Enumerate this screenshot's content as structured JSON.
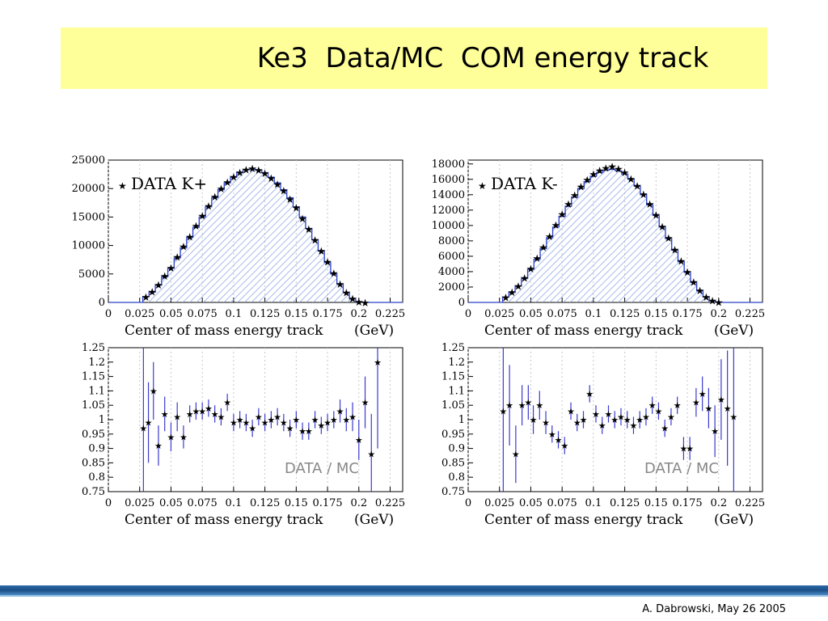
{
  "slide": {
    "title": "Ke3  Data/MC  COM energy track",
    "footer": "A. Dabrowski, May 26 2005",
    "colors": {
      "banner": "#ffff99",
      "mc_fill": "#8fa8e8",
      "mc_line": "#2a40c8",
      "data_marker": "#000000",
      "error_bar": "#3a3ad0"
    }
  },
  "chart_data": [
    {
      "type": "line",
      "id": "kplus-dist",
      "legend": "DATA  K+",
      "xlabel": "Center of mass energy track",
      "xunit": "(GeV)",
      "xlim": [
        0,
        0.235
      ],
      "ylim": [
        0,
        25000
      ],
      "xticks": [
        "0",
        "0.025",
        "0.05",
        "0.075",
        "0.1",
        "0.125",
        "0.15",
        "0.175",
        "0.2",
        "0.225"
      ],
      "yticks": [
        "0",
        "5000",
        "10000",
        "15000",
        "20000",
        "25000"
      ],
      "x": [
        0.03,
        0.035,
        0.04,
        0.045,
        0.05,
        0.055,
        0.06,
        0.065,
        0.07,
        0.075,
        0.08,
        0.085,
        0.09,
        0.095,
        0.1,
        0.105,
        0.11,
        0.115,
        0.12,
        0.125,
        0.13,
        0.135,
        0.14,
        0.145,
        0.15,
        0.155,
        0.16,
        0.165,
        0.17,
        0.175,
        0.18,
        0.185,
        0.19,
        0.195,
        0.2,
        0.205,
        0.21
      ],
      "series": [
        {
          "name": "MC",
          "values": [
            1000,
            1800,
            3000,
            4500,
            6000,
            7800,
            9600,
            11400,
            13200,
            15000,
            16800,
            18400,
            19800,
            21000,
            22000,
            22800,
            23300,
            23400,
            23200,
            22800,
            22000,
            21000,
            19800,
            18400,
            16800,
            15000,
            13000,
            11000,
            9000,
            7000,
            5000,
            3200,
            1700,
            600,
            100,
            0,
            0
          ]
        },
        {
          "name": "DATA",
          "values": [
            1000,
            1900,
            3100,
            4700,
            6100,
            8000,
            9900,
            11600,
            13500,
            15300,
            17000,
            18600,
            20000,
            21200,
            22100,
            22900,
            23400,
            23600,
            23300,
            22700,
            21900,
            20800,
            19700,
            18200,
            16700,
            14800,
            12900,
            11000,
            9100,
            7200,
            5200,
            3300,
            1800,
            700,
            150,
            20,
            0
          ]
        }
      ]
    },
    {
      "type": "line",
      "id": "kminus-dist",
      "legend": "DATA  K-",
      "xlabel": "Center of mass energy track",
      "xunit": "(GeV)",
      "xlim": [
        0,
        0.235
      ],
      "ylim": [
        0,
        18500
      ],
      "xticks": [
        "0",
        "0.025",
        "0.05",
        "0.075",
        "0.1",
        "0.125",
        "0.15",
        "0.175",
        "0.2",
        "0.225"
      ],
      "yticks": [
        "0",
        "2000",
        "4000",
        "6000",
        "8000",
        "10000",
        "12000",
        "14000",
        "16000",
        "18000"
      ],
      "x": [
        0.03,
        0.035,
        0.04,
        0.045,
        0.05,
        0.055,
        0.06,
        0.065,
        0.07,
        0.075,
        0.08,
        0.085,
        0.09,
        0.095,
        0.1,
        0.105,
        0.11,
        0.115,
        0.12,
        0.125,
        0.13,
        0.135,
        0.14,
        0.145,
        0.15,
        0.155,
        0.16,
        0.165,
        0.17,
        0.175,
        0.18,
        0.185,
        0.19,
        0.195,
        0.2,
        0.205,
        0.21
      ],
      "series": [
        {
          "name": "MC",
          "values": [
            700,
            1300,
            2100,
            3100,
            4300,
            5600,
            7000,
            8400,
            9800,
            11200,
            12500,
            13700,
            14800,
            15700,
            16400,
            16900,
            17200,
            17300,
            17100,
            16700,
            16000,
            15100,
            14000,
            12700,
            11300,
            9800,
            8300,
            6800,
            5300,
            3900,
            2600,
            1500,
            700,
            200,
            30,
            0,
            0
          ]
        },
        {
          "name": "DATA",
          "values": [
            700,
            1350,
            2150,
            3200,
            4400,
            5800,
            7200,
            8600,
            10100,
            11500,
            12800,
            14000,
            15100,
            16000,
            16700,
            17200,
            17500,
            17700,
            17400,
            16900,
            16100,
            15200,
            14100,
            12800,
            11400,
            9900,
            8400,
            6900,
            5400,
            4000,
            2700,
            1600,
            750,
            250,
            50,
            0,
            0
          ]
        }
      ]
    },
    {
      "type": "scatter",
      "id": "kplus-ratio",
      "label": "DATA / MC",
      "xlabel": "Center of mass energy track",
      "xunit": "(GeV)",
      "xlim": [
        0,
        0.235
      ],
      "ylim": [
        0.75,
        1.25
      ],
      "xticks": [
        "0",
        "0.025",
        "0.05",
        "0.075",
        "0.1",
        "0.125",
        "0.15",
        "0.175",
        "0.2",
        "0.225"
      ],
      "yticks": [
        "0.75",
        "0.8",
        "0.85",
        "0.9",
        "0.95",
        "1",
        "1.05",
        "1.1",
        "1.15",
        "1.2",
        "1.25"
      ],
      "x": [
        0.028,
        0.032,
        0.036,
        0.04,
        0.045,
        0.05,
        0.055,
        0.06,
        0.065,
        0.07,
        0.075,
        0.08,
        0.085,
        0.09,
        0.095,
        0.1,
        0.105,
        0.11,
        0.115,
        0.12,
        0.125,
        0.13,
        0.135,
        0.14,
        0.145,
        0.15,
        0.155,
        0.16,
        0.165,
        0.17,
        0.175,
        0.18,
        0.185,
        0.19,
        0.195,
        0.2,
        0.205,
        0.21,
        0.215
      ],
      "y": [
        0.97,
        0.99,
        1.1,
        0.91,
        1.02,
        0.94,
        1.01,
        0.94,
        1.02,
        1.03,
        1.03,
        1.04,
        1.02,
        1.01,
        1.06,
        0.99,
        1.0,
        0.99,
        0.97,
        1.01,
        0.99,
        1.0,
        1.01,
        0.99,
        0.97,
        1.0,
        0.96,
        0.96,
        1.0,
        0.98,
        0.99,
        1.0,
        1.03,
        1.0,
        1.01,
        0.93,
        1.06,
        0.88,
        1.2
      ],
      "err": [
        0.35,
        0.14,
        0.1,
        0.07,
        0.06,
        0.05,
        0.05,
        0.04,
        0.03,
        0.03,
        0.03,
        0.03,
        0.03,
        0.03,
        0.03,
        0.03,
        0.03,
        0.03,
        0.03,
        0.03,
        0.03,
        0.03,
        0.03,
        0.03,
        0.03,
        0.03,
        0.03,
        0.03,
        0.03,
        0.03,
        0.03,
        0.03,
        0.04,
        0.04,
        0.05,
        0.07,
        0.09,
        0.14,
        0.3
      ]
    },
    {
      "type": "scatter",
      "id": "kminus-ratio",
      "label": "DATA / MC",
      "xlabel": "Center of mass energy track",
      "xunit": "(GeV)",
      "xlim": [
        0,
        0.235
      ],
      "ylim": [
        0.75,
        1.25
      ],
      "xticks": [
        "0",
        "0.025",
        "0.05",
        "0.075",
        "0.1",
        "0.125",
        "0.15",
        "0.175",
        "0.2",
        "0.225"
      ],
      "yticks": [
        "0.75",
        "0.8",
        "0.85",
        "0.9",
        "0.95",
        "1",
        "1.05",
        "1.1",
        "1.15",
        "1.2",
        "1.25"
      ],
      "x": [
        0.028,
        0.033,
        0.038,
        0.043,
        0.048,
        0.052,
        0.057,
        0.062,
        0.067,
        0.072,
        0.077,
        0.082,
        0.087,
        0.092,
        0.097,
        0.102,
        0.107,
        0.112,
        0.117,
        0.122,
        0.127,
        0.132,
        0.137,
        0.142,
        0.147,
        0.152,
        0.157,
        0.162,
        0.167,
        0.172,
        0.177,
        0.182,
        0.187,
        0.192,
        0.197,
        0.202,
        0.207,
        0.212
      ],
      "y": [
        1.03,
        1.05,
        0.88,
        1.05,
        1.06,
        1.0,
        1.05,
        0.99,
        0.95,
        0.93,
        0.91,
        1.03,
        0.99,
        1.0,
        1.09,
        1.02,
        0.98,
        1.02,
        1.0,
        1.01,
        1.0,
        0.98,
        1.0,
        1.01,
        1.05,
        1.03,
        0.97,
        1.01,
        1.05,
        0.9,
        0.9,
        1.06,
        1.09,
        1.04,
        0.96,
        1.07,
        1.04,
        1.01
      ],
      "err": [
        0.35,
        0.14,
        0.1,
        0.07,
        0.06,
        0.05,
        0.05,
        0.04,
        0.03,
        0.03,
        0.03,
        0.03,
        0.03,
        0.03,
        0.03,
        0.03,
        0.03,
        0.03,
        0.03,
        0.03,
        0.03,
        0.03,
        0.03,
        0.03,
        0.03,
        0.03,
        0.03,
        0.03,
        0.03,
        0.04,
        0.04,
        0.05,
        0.06,
        0.07,
        0.09,
        0.14,
        0.2,
        0.3
      ]
    }
  ]
}
